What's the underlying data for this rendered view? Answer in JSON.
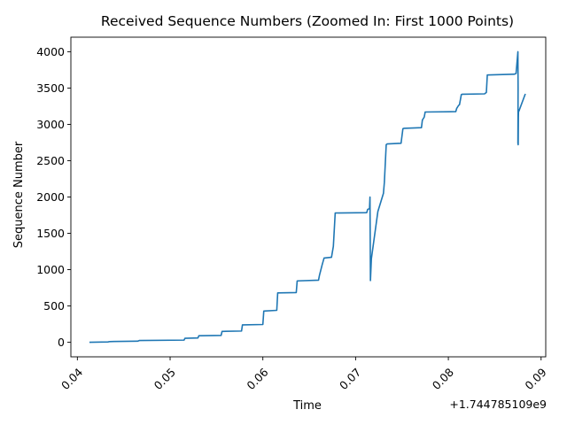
{
  "chart_data": {
    "type": "line",
    "title": "Received Sequence Numbers (Zoomed In: First 1000 Points)",
    "xlabel": "Time",
    "ylabel": "Sequence Number",
    "x_offset_label": "+1.744785109e9",
    "xlim": [
      0.0393,
      0.0905
    ],
    "ylim": [
      -200,
      4200
    ],
    "x_ticks": [
      0.04,
      0.05,
      0.06,
      0.07,
      0.08,
      0.09
    ],
    "x_tick_labels": [
      "0.04",
      "0.05",
      "0.06",
      "0.07",
      "0.08",
      "0.09"
    ],
    "y_ticks": [
      0,
      500,
      1000,
      1500,
      2000,
      2500,
      3000,
      3500,
      4000
    ],
    "y_tick_labels": [
      "0",
      "500",
      "1000",
      "1500",
      "2000",
      "2500",
      "3000",
      "3500",
      "4000"
    ],
    "grid": false,
    "series": [
      {
        "color": "#1f77b4",
        "x": [
          0.0413,
          0.0433,
          0.0435,
          0.0465,
          0.0467,
          0.0515,
          0.0516,
          0.053,
          0.0531,
          0.0555,
          0.0556,
          0.0577,
          0.0578,
          0.06,
          0.0601,
          0.0615,
          0.0616,
          0.0636,
          0.0637,
          0.066,
          0.0661,
          0.0664,
          0.0666,
          0.0674,
          0.0676,
          0.0678,
          0.0712,
          0.0713,
          0.0715,
          0.07155,
          0.0716,
          0.0717,
          0.0724,
          0.073,
          0.0731,
          0.0733,
          0.0734,
          0.0749,
          0.0751,
          0.0752,
          0.0771,
          0.0772,
          0.0774,
          0.0775,
          0.0808,
          0.0809,
          0.0811,
          0.0812,
          0.0814,
          0.0815,
          0.0839,
          0.0841,
          0.0842,
          0.0871,
          0.0873,
          0.0874,
          0.0875,
          0.08752,
          0.0875,
          0.08753,
          0.08755,
          0.08757,
          0.0876,
          0.0883
        ],
        "y": [
          0,
          5,
          10,
          15,
          25,
          30,
          55,
          60,
          90,
          95,
          150,
          155,
          240,
          245,
          430,
          440,
          680,
          685,
          845,
          855,
          920,
          1070,
          1160,
          1170,
          1320,
          1780,
          1785,
          1830,
          1840,
          2000,
          850,
          1150,
          1800,
          2050,
          2200,
          2720,
          2730,
          2740,
          2940,
          2945,
          2955,
          3060,
          3100,
          3170,
          3175,
          3220,
          3260,
          3270,
          3410,
          3415,
          3420,
          3440,
          3680,
          3690,
          3700,
          3850,
          4000,
          3500,
          2740,
          2720,
          3100,
          3200,
          3180,
          3420
        ]
      }
    ]
  }
}
